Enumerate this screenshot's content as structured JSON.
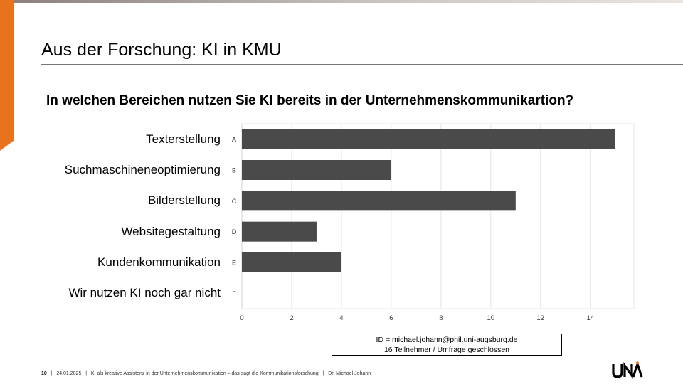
{
  "slide": {
    "title": "Aus der Forschung: KI in KMU",
    "question": "In welchen Bereichen nutzen Sie KI bereits in der Unternehmenskommunikartion?"
  },
  "chart_data": {
    "type": "bar",
    "orientation": "horizontal",
    "categories": [
      "Texterstellung",
      "Suchmaschineneoptimierung",
      "Bilderstellung",
      "Websitegestaltung",
      "Kundenkommunikation",
      "Wir nutzen KI noch gar nicht"
    ],
    "codes": [
      "A",
      "B",
      "C",
      "D",
      "E",
      "F"
    ],
    "values": [
      15,
      6,
      11,
      3,
      4,
      0
    ],
    "xlim": [
      0,
      15.75
    ],
    "xticks": [
      0,
      2,
      4,
      6,
      8,
      10,
      12,
      14
    ],
    "grid": "vertical",
    "bar_color": "#4a4a4a"
  },
  "info": {
    "line1": "ID = michael.johann@phil.uni-augsburg.de",
    "line2": "16 Teilnehmer / Umfrage geschlossen"
  },
  "footer": {
    "page": "10",
    "date": "24.01.2025",
    "talk": "KI als kreative Assistenz in der Unternehmenskommunikation – das sagt die Kommunikationsforschung",
    "author": "Dr. Michael Johann",
    "sep": "|"
  },
  "logo": {
    "text": "UNA",
    "icon": "uni-augsburg-logo"
  },
  "colors": {
    "accent": "#e8731c",
    "bar": "#4a4a4a"
  }
}
